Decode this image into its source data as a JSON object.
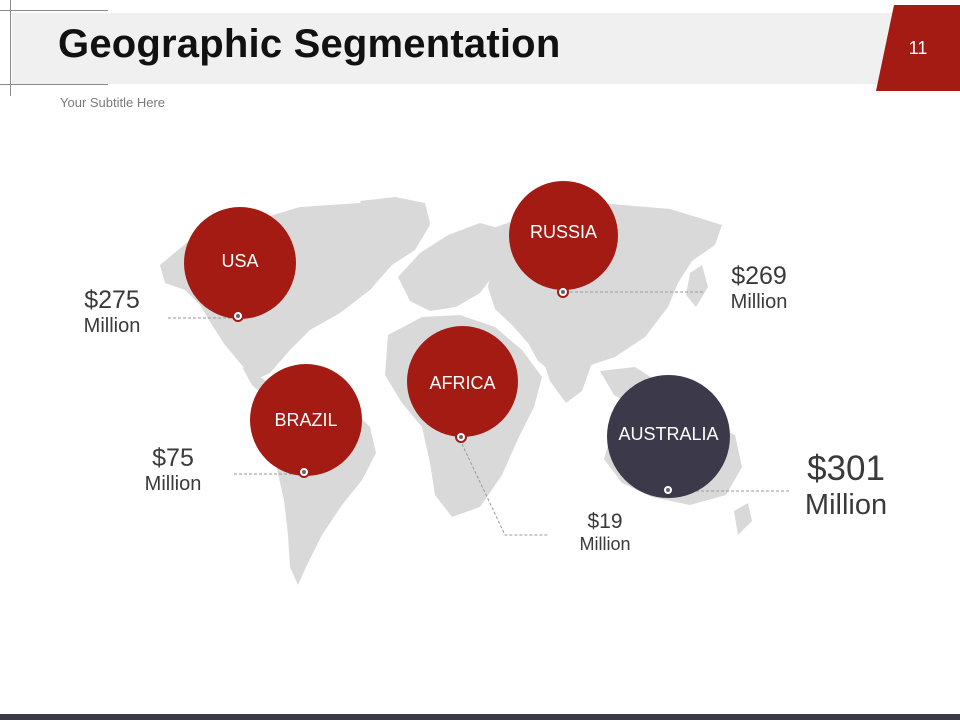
{
  "header": {
    "title": "Geographic Segmentation",
    "subtitle": "Your Subtitle Here",
    "page_number": "11"
  },
  "colors": {
    "accent_red": "#a31b12",
    "accent_dark": "#3c3a4a",
    "map_gray": "#d9d9d9",
    "title_band": "#f0f0f0"
  },
  "regions": [
    {
      "label": "USA",
      "amount": "$275",
      "unit": "Million"
    },
    {
      "label": "RUSSIA",
      "amount": "$269",
      "unit": "Million"
    },
    {
      "label": "BRAZIL",
      "amount": "$75",
      "unit": "Million"
    },
    {
      "label": "AFRICA",
      "amount": "$19",
      "unit": "Million"
    },
    {
      "label": "AUSTRALIA",
      "amount": "$301",
      "unit": "Million"
    }
  ]
}
